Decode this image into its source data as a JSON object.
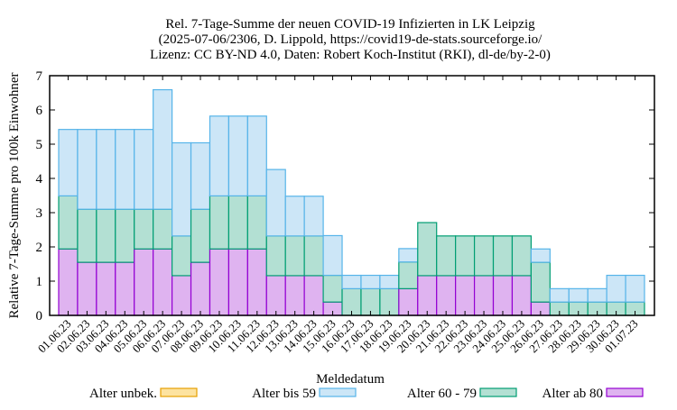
{
  "chart_data": {
    "type": "bar",
    "stacked": true,
    "title": [
      "Rel. 7-Tage-Summe der neuen COVID-19 Infizierten in LK Leipzig",
      "(2025-07-06/2306, D. Lippold, https://covid19-de-stats.sourceforge.io/",
      "Lizenz: CC BY-ND 4.0, Daten: Robert Koch-Institut (RKI), dl-de/by-2-0)"
    ],
    "xlabel": "Meldedatum",
    "ylabel": "Relative 7-Tage-Summe pro 100k Einwohner",
    "ylim": [
      0,
      7
    ],
    "yticks": [
      "0",
      "1",
      "2",
      "3",
      "4",
      "5",
      "6",
      "7"
    ],
    "grid": false,
    "legend_position": "bottom",
    "categories": [
      "01.06.23",
      "02.06.23",
      "03.06.23",
      "04.06.23",
      "05.06.23",
      "06.06.23",
      "07.06.23",
      "08.06.23",
      "09.06.23",
      "10.06.23",
      "11.06.23",
      "12.06.23",
      "13.06.23",
      "14.06.23",
      "15.06.23",
      "16.06.23",
      "17.06.23",
      "18.06.23",
      "19.06.23",
      "20.06.23",
      "21.06.23",
      "22.06.23",
      "23.06.23",
      "24.06.23",
      "25.06.23",
      "26.06.23",
      "27.06.23",
      "28.06.23",
      "29.06.23",
      "30.06.23",
      "01.07.23"
    ],
    "series": [
      {
        "name": "Alter ab 80",
        "fill": "#dfb3f0",
        "stroke": "#9400d3",
        "values": [
          1.94,
          1.55,
          1.55,
          1.55,
          1.94,
          1.94,
          1.16,
          1.55,
          1.94,
          1.94,
          1.94,
          1.16,
          1.16,
          1.16,
          0.39,
          0,
          0,
          0,
          0.78,
          1.16,
          1.16,
          1.16,
          1.16,
          1.16,
          1.16,
          0.39,
          0,
          0,
          0,
          0,
          0
        ]
      },
      {
        "name": "Alter 60 - 79",
        "fill": "#b3e0d3",
        "stroke": "#009e73",
        "values": [
          1.55,
          1.55,
          1.55,
          1.55,
          1.16,
          1.16,
          1.16,
          1.55,
          1.55,
          1.55,
          1.55,
          1.16,
          1.16,
          1.16,
          0.78,
          0.78,
          0.78,
          0.78,
          0.78,
          1.55,
          1.16,
          1.16,
          1.16,
          1.16,
          1.16,
          1.16,
          0.39,
          0.39,
          0.39,
          0.39,
          0.39
        ]
      },
      {
        "name": "Alter bis 59",
        "fill": "#cce6f7",
        "stroke": "#56b4e9",
        "values": [
          1.94,
          2.33,
          2.33,
          2.33,
          2.33,
          3.49,
          2.72,
          1.94,
          2.33,
          2.33,
          2.33,
          1.94,
          1.16,
          1.16,
          1.16,
          0.39,
          0.39,
          0.39,
          0.39,
          0,
          0,
          0,
          0,
          0,
          0,
          0.39,
          0.39,
          0.39,
          0.39,
          0.78,
          0.78
        ]
      },
      {
        "name": "Alter unbek.",
        "fill": "#fde3a0",
        "stroke": "#e69f00",
        "values": [
          0,
          0,
          0,
          0,
          0,
          0,
          0,
          0,
          0,
          0,
          0,
          0,
          0,
          0,
          0,
          0,
          0,
          0,
          0,
          0,
          0,
          0,
          0,
          0,
          0,
          0,
          0,
          0,
          0,
          0,
          0
        ]
      }
    ],
    "legend_order": [
      "Alter unbek.",
      "Alter bis 59",
      "Alter 60 - 79",
      "Alter ab 80"
    ]
  }
}
